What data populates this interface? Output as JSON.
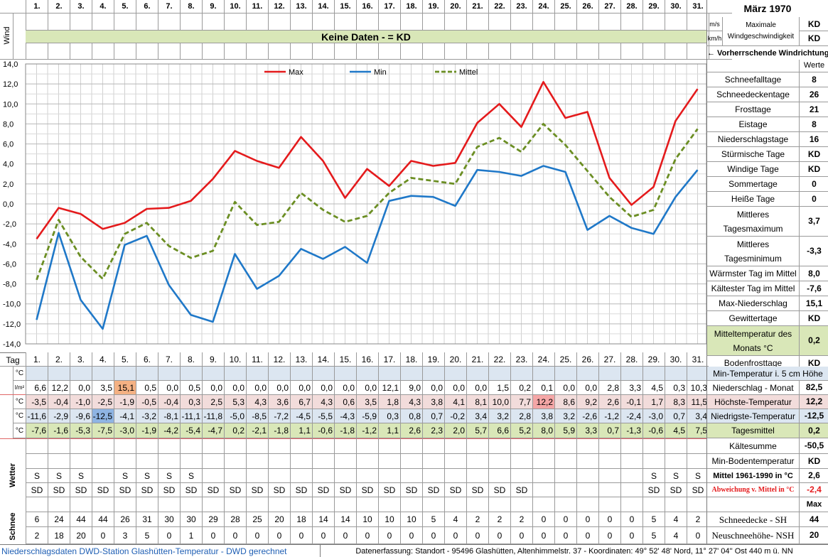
{
  "header": {
    "month_title": "März 1970",
    "days": [
      "1.",
      "2.",
      "3.",
      "4.",
      "5.",
      "6.",
      "7.",
      "8.",
      "9.",
      "10.",
      "11.",
      "12.",
      "13.",
      "14.",
      "15.",
      "16.",
      "17.",
      "18.",
      "19.",
      "20.",
      "21.",
      "22.",
      "23.",
      "24.",
      "25.",
      "26.",
      "27.",
      "28.",
      "29.",
      "30.",
      "31."
    ],
    "wind_label": "Wind",
    "unit_ms": "m/s",
    "unit_kmh": "km/h",
    "wind_desc": "Maximale Windgeschwindigkeit",
    "wind_ms_value": "KD",
    "wind_kmh_value": "KD",
    "no_data_banner": "Keine Daten -  = KD",
    "wind_direction_label": "←  Vorherrschende Windrichtung"
  },
  "colors": {
    "max": "#e41a1c",
    "min": "#1f78c8",
    "mittel": "#6b8e23",
    "green_bg": "#d9e7b8",
    "blue_bg": "#dce6f1",
    "pink_bg": "#f2dcdb",
    "orange": "#f4b183",
    "blue_hl": "#8eb4e3",
    "pink_hl": "#f4a6a6"
  },
  "chart_data": {
    "type": "line",
    "x": [
      1,
      2,
      3,
      4,
      5,
      6,
      7,
      8,
      9,
      10,
      11,
      12,
      13,
      14,
      15,
      16,
      17,
      18,
      19,
      20,
      21,
      22,
      23,
      24,
      25,
      26,
      27,
      28,
      29,
      30,
      31
    ],
    "ylim": [
      -14,
      14
    ],
    "yticks": [
      "14,0",
      "12,0",
      "10,0",
      "8,0",
      "6,0",
      "4,0",
      "2,0",
      "0,0",
      "-2,0",
      "-4,0",
      "-6,0",
      "-8,0",
      "-10,0",
      "-12,0",
      "-14,0"
    ],
    "legend_placement": "top",
    "series": [
      {
        "name": "Max",
        "values": [
          -3.5,
          -0.4,
          -1.0,
          -2.5,
          -1.9,
          -0.5,
          -0.4,
          0.3,
          2.5,
          5.3,
          4.3,
          3.6,
          6.7,
          4.3,
          0.6,
          3.5,
          1.8,
          4.3,
          3.8,
          4.1,
          8.1,
          10.0,
          7.7,
          12.2,
          8.6,
          9.2,
          2.6,
          -0.1,
          1.7,
          8.3,
          11.5
        ]
      },
      {
        "name": "Min",
        "values": [
          -11.6,
          -2.9,
          -9.6,
          -12.5,
          -4.1,
          -3.2,
          -8.1,
          -11.1,
          -11.8,
          -5.0,
          -8.5,
          -7.2,
          -4.5,
          -5.5,
          -4.3,
          -5.9,
          0.3,
          0.8,
          0.7,
          -0.2,
          3.4,
          3.2,
          2.8,
          3.8,
          3.2,
          -2.6,
          -1.2,
          -2.4,
          -3.0,
          0.7,
          3.4
        ]
      },
      {
        "name": "Mittel",
        "values": [
          -7.6,
          -1.6,
          -5.3,
          -7.5,
          -3.0,
          -1.9,
          -4.2,
          -5.4,
          -4.7,
          0.2,
          -2.1,
          -1.8,
          1.1,
          -0.6,
          -1.8,
          -1.2,
          1.1,
          2.6,
          2.3,
          2.0,
          5.7,
          6.6,
          5.2,
          8.0,
          5.9,
          3.3,
          0.7,
          -1.3,
          -0.6,
          4.5,
          7.5
        ]
      }
    ]
  },
  "stats_top": {
    "header": "Werte",
    "items": [
      {
        "label": "Schneefalltage",
        "value": "8"
      },
      {
        "label": "Schneedeckentage",
        "value": "26"
      },
      {
        "label": "Frosttage",
        "value": "21"
      },
      {
        "label": "Eistage",
        "value": "8"
      },
      {
        "label": "Niederschlagstage",
        "value": "16"
      },
      {
        "label": "Stürmische Tage",
        "value": "KD"
      },
      {
        "label": "Windige Tage",
        "value": "KD"
      },
      {
        "label": "Sommertage",
        "value": "0"
      },
      {
        "label": "Heiße Tage",
        "value": "0"
      },
      {
        "label": "Mittleres Tagesmaximum",
        "value": "3,7"
      },
      {
        "label": "Mittleres Tagesminimum",
        "value": "-3,3"
      },
      {
        "label": "Wärmster Tag im Mittel",
        "value": "8,0"
      },
      {
        "label": "Kältester Tag im Mittel",
        "value": "-7,6"
      },
      {
        "label": "Max-Niederschlag",
        "value": "15,1"
      },
      {
        "label": "Gewittertage",
        "value": "KD"
      },
      {
        "label": "Mitteltemperatur des Monats °C",
        "value": "0,2"
      },
      {
        "label": "Bodenfrosttage",
        "value": "KD"
      }
    ]
  },
  "table": {
    "tag_label": "Tag",
    "unit_c": "°C",
    "unit_lm2": "l/m²",
    "rows": {
      "niederschlag": [
        "6,6",
        "12,2",
        "0,0",
        "3,5",
        "15,1",
        "0,5",
        "0,0",
        "0,5",
        "0,0",
        "0,0",
        "0,0",
        "0,0",
        "0,0",
        "0,0",
        "0,0",
        "0,0",
        "12,1",
        "9,0",
        "0,0",
        "0,0",
        "0,0",
        "1,5",
        "0,2",
        "0,1",
        "0,0",
        "0,0",
        "2,8",
        "3,3",
        "4,5",
        "0,3",
        "10,3"
      ],
      "max": [
        "-3,5",
        "-0,4",
        "-1,0",
        "-2,5",
        "-1,9",
        "-0,5",
        "-0,4",
        "0,3",
        "2,5",
        "5,3",
        "4,3",
        "3,6",
        "6,7",
        "4,3",
        "0,6",
        "3,5",
        "1,8",
        "4,3",
        "3,8",
        "4,1",
        "8,1",
        "10,0",
        "7,7",
        "12,2",
        "8,6",
        "9,2",
        "2,6",
        "-0,1",
        "1,7",
        "8,3",
        "11,5"
      ],
      "min": [
        "-11,6",
        "-2,9",
        "-9,6",
        "-12,5",
        "-4,1",
        "-3,2",
        "-8,1",
        "-11,1",
        "-11,8",
        "-5,0",
        "-8,5",
        "-7,2",
        "-4,5",
        "-5,5",
        "-4,3",
        "-5,9",
        "0,3",
        "0,8",
        "0,7",
        "-0,2",
        "3,4",
        "3,2",
        "2,8",
        "3,8",
        "3,2",
        "-2,6",
        "-1,2",
        "-2,4",
        "-3,0",
        "0,7",
        "3,4"
      ],
      "mittel": [
        "-7,6",
        "-1,6",
        "-5,3",
        "-7,5",
        "-3,0",
        "-1,9",
        "-4,2",
        "-5,4",
        "-4,7",
        "0,2",
        "-2,1",
        "-1,8",
        "1,1",
        "-0,6",
        "-1,8",
        "-1,2",
        "1,1",
        "2,6",
        "2,3",
        "2,0",
        "5,7",
        "6,6",
        "5,2",
        "8,0",
        "5,9",
        "3,3",
        "0,7",
        "-1,3",
        "-0,6",
        "4,5",
        "7,5"
      ]
    },
    "wetter_label": "Wetter",
    "wetter_s": [
      "S",
      "S",
      "S",
      "",
      "S",
      "S",
      "S",
      "S",
      "",
      "",
      "",
      "",
      "",
      "",
      "",
      "",
      "",
      "",
      "",
      "",
      "",
      "",
      "",
      "",
      "",
      "",
      "",
      "",
      "S",
      "S",
      "S"
    ],
    "wetter_sd": [
      "SD",
      "SD",
      "SD",
      "SD",
      "SD",
      "SD",
      "SD",
      "SD",
      "SD",
      "SD",
      "SD",
      "SD",
      "SD",
      "SD",
      "SD",
      "SD",
      "SD",
      "SD",
      "SD",
      "SD",
      "SD",
      "SD",
      "SD",
      "",
      "",
      "",
      "",
      "",
      "SD",
      "SD",
      "SD"
    ],
    "schnee_label": "Schnee",
    "schneedecke": [
      "6",
      "24",
      "44",
      "44",
      "26",
      "31",
      "30",
      "30",
      "29",
      "28",
      "25",
      "20",
      "18",
      "14",
      "14",
      "10",
      "10",
      "10",
      "5",
      "4",
      "2",
      "2",
      "2",
      "0",
      "0",
      "0",
      "0",
      "0",
      "5",
      "4",
      "2"
    ],
    "neuschnee": [
      "2",
      "18",
      "20",
      "0",
      "3",
      "5",
      "0",
      "1",
      "0",
      "0",
      "0",
      "0",
      "0",
      "0",
      "0",
      "0",
      "0",
      "0",
      "0",
      "0",
      "0",
      "0",
      "0",
      "0",
      "0",
      "0",
      "0",
      "0",
      "5",
      "4",
      "0"
    ]
  },
  "stats_bottom": [
    {
      "label": "Min-Temperatur i. 5 cm Höhe",
      "value": ""
    },
    {
      "label": "Niederschlag - Monat",
      "value": "82,5"
    },
    {
      "label": "Höchste-Temperatur",
      "value": "12,2"
    },
    {
      "label": "Niedrigste-Temperatur",
      "value": "-12,5"
    },
    {
      "label": "Tagesmittel",
      "value": "0,2"
    },
    {
      "label": "Kältesumme",
      "value": "-50,5"
    },
    {
      "label": "Min-Bodentemperatur",
      "value": "KD"
    },
    {
      "label": "Mittel 1961-1990 in °C",
      "value": "2,6"
    },
    {
      "label": "Abweichung v. Mittel in °C",
      "value": "-2,4"
    },
    {
      "label": "",
      "value": "Max"
    },
    {
      "label": "Schneedecke -  SH",
      "value": "44"
    },
    {
      "label": "Neuschneehöhe- NSH",
      "value": "20"
    }
  ],
  "footer": {
    "left": "Niederschlagsdaten DWD-Station Glashütten-Temperatur -  DWD gerechnet",
    "right": "Datenerfassung: Standort -  95496  Glashütten, Altenhimmelstr. 37 - Koordinaten:  49° 52' 48' Nord,   11° 27' 04'' Ost   440 m ü. NN"
  }
}
